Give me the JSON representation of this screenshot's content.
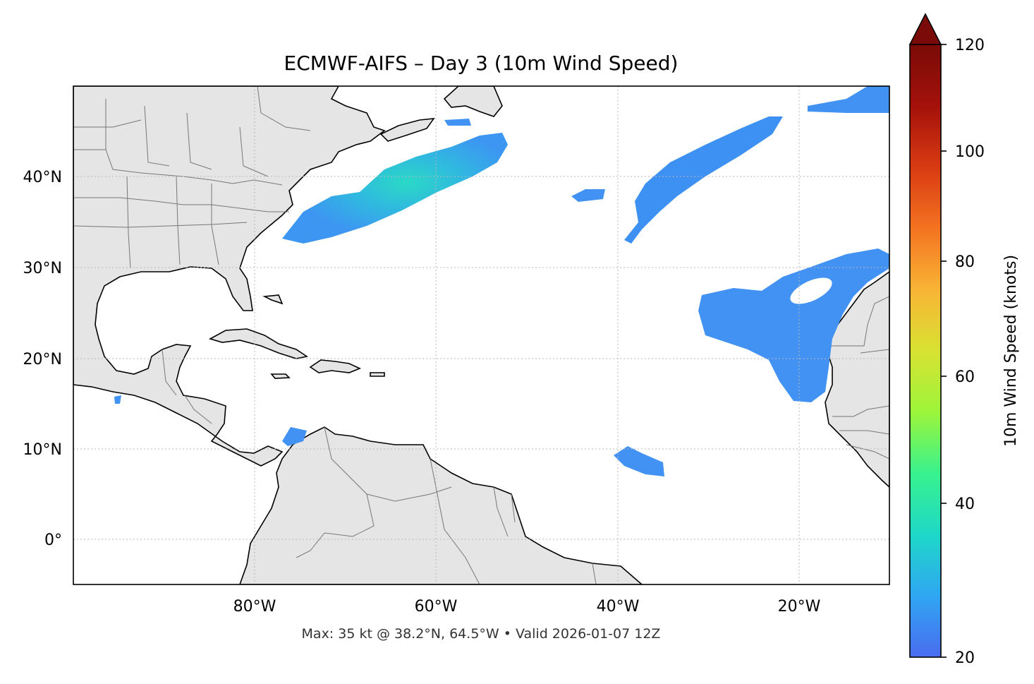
{
  "map": {
    "title": "ECMWF-AIFS – Day 3 (10m Wind Speed)",
    "footer": "Max: 35 kt @ 38.2°N, 64.5°W • Valid 2026-01-07 12Z",
    "lon_labels": [
      "80°W",
      "60°W",
      "40°W",
      "20°W"
    ],
    "lat_labels": [
      "40°N",
      "30°N",
      "20°N",
      "10°N",
      "0°"
    ],
    "extent": {
      "lon": [
        -100,
        -10
      ],
      "lat": [
        -5,
        50
      ]
    }
  },
  "colorbar": {
    "label": "10m Wind Speed (knots)",
    "ticks": [
      "120",
      "100",
      "80",
      "60",
      "40",
      "20"
    ],
    "range": [
      20,
      120
    ],
    "extend": "max",
    "colors": [
      "#4a6cf0",
      "#2fa6f2",
      "#1ed8c8",
      "#38f28e",
      "#9cf53a",
      "#d8e232",
      "#f9b435",
      "#f47321",
      "#d83a12",
      "#a4110a",
      "#6d0a07"
    ]
  },
  "colors": {
    "land": "#e5e5e5",
    "coast": "#000000",
    "borders": "#777777",
    "wind_low": "#4191f5",
    "wind_mid": "#2ccfd6"
  }
}
